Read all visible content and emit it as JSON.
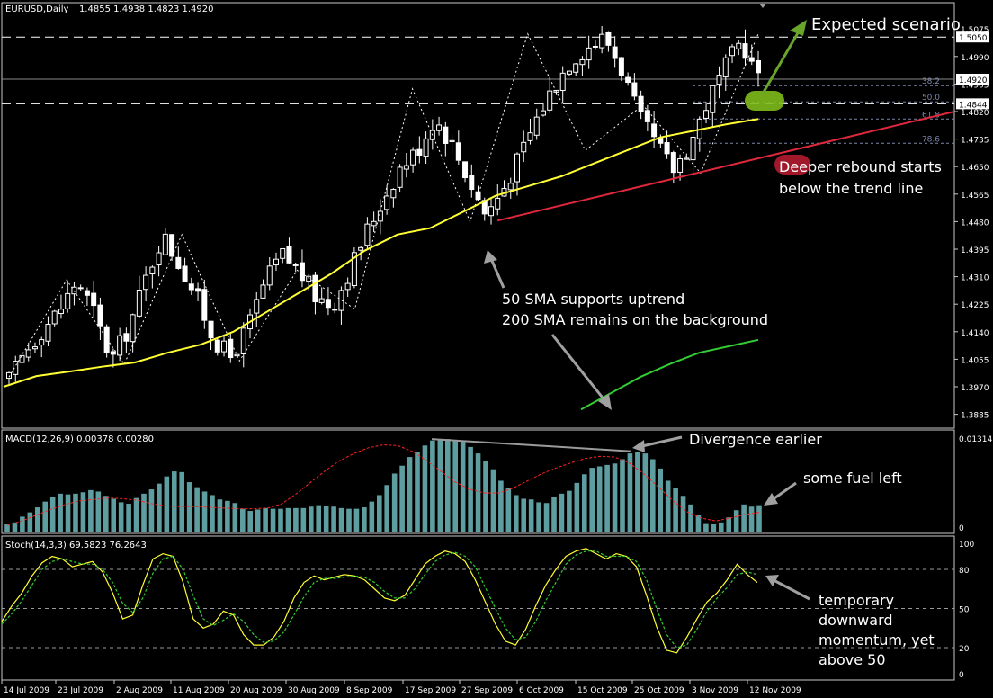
{
  "colors": {
    "background": "#000000",
    "frame": "#c8c8c8",
    "bull_candle": "#000000",
    "bear_candle": "#ffffff",
    "candle_outline": "#ffffff",
    "sma50": "#ffff33",
    "sma200": "#33cc33",
    "trend_line": "#e0283c",
    "fib_level": "#7a86a8",
    "macd_histogram": "#5f9ea0",
    "macd_signal": "#ff2222",
    "stoch_main": "#ffff33",
    "stoch_signal": "#33cc33",
    "annotation_text": "#ffffff",
    "arrow_gray": "#a0a0a0",
    "arrow_green": "#6aa52b",
    "highlight_green": "#7dbb1c",
    "highlight_red": "#a1182a"
  },
  "chart_data": [
    {
      "type": "candlestick",
      "title": "EURUSD,Daily",
      "ohlc_header": "1.4855 1.4938 1.4823 1.4920",
      "y_ticks": [
        "1.5075",
        "1.4990",
        "1.4905",
        "1.4820",
        "1.4735",
        "1.4650",
        "1.4565",
        "1.4480",
        "1.4395",
        "1.4310",
        "1.4225",
        "1.4140",
        "1.4055",
        "1.3970",
        "1.3885"
      ],
      "ylim": [
        1.387,
        1.5095
      ],
      "price_labels": [
        "1.5050",
        "1.4920",
        "1.4844"
      ],
      "x_ticks": [
        "14 Jul 2009",
        "23 Jul 2009",
        "2 Aug 2009",
        "11 Aug 2009",
        "20 Aug 2009",
        "30 Aug 2009",
        "8 Sep 2009",
        "17 Sep 2009",
        "27 Sep 2009",
        "6 Oct 2009",
        "15 Oct 2009",
        "25 Oct 2009",
        "3 Nov 2009",
        "12 Nov 2009"
      ],
      "fib_levels": [
        {
          "label": "38.2",
          "value": 1.49
        },
        {
          "label": "50.0",
          "value": 1.485
        },
        {
          "label": "61.8",
          "value": 1.4797
        },
        {
          "label": "78.6",
          "value": 1.4722
        }
      ],
      "close_path": [
        1.399,
        1.408,
        1.415,
        1.421,
        1.43,
        1.42,
        1.405,
        1.415,
        1.43,
        1.444,
        1.435,
        1.425,
        1.412,
        1.406,
        1.415,
        1.429,
        1.438,
        1.433,
        1.425,
        1.422,
        1.433,
        1.445,
        1.455,
        1.465,
        1.47,
        1.48,
        1.472,
        1.461,
        1.45,
        1.458,
        1.468,
        1.48,
        1.49,
        1.498,
        1.502,
        1.505,
        1.495,
        1.48,
        1.472,
        1.464,
        1.472,
        1.485,
        1.495,
        1.504,
        1.492
      ],
      "sma50": [
        1.397,
        1.4003,
        1.4017,
        1.4032,
        1.4045,
        1.4075,
        1.41,
        1.414,
        1.42,
        1.426,
        1.432,
        1.439,
        1.444,
        1.446,
        1.451,
        1.456,
        1.459,
        1.462,
        1.466,
        1.47,
        1.474,
        1.476,
        1.478,
        1.4797
      ],
      "sma200": [
        1.39,
        1.395,
        1.4,
        1.404,
        1.4075,
        1.4095,
        1.4115
      ],
      "trend_line": [
        [
          1.4483,
          1.482
        ]
      ],
      "zigzag": [
        1.4,
        1.43,
        1.404,
        1.444,
        1.405,
        1.433,
        1.421,
        1.489,
        1.448,
        1.506,
        1.47,
        1.484,
        1.463,
        1.506
      ],
      "annotations": [
        "Expected scenario",
        "Deeper rebound starts",
        "below the trend line",
        "50 SMA supports uptrend",
        "200 SMA remains on the background"
      ]
    },
    {
      "type": "bar",
      "title": "MACD(12,26,9) 0.00378 0.00280",
      "y_ticks": [
        "0.01314",
        "0"
      ],
      "ylim": [
        0,
        0.01314
      ],
      "values": [
        0.0012,
        0.0014,
        0.0022,
        0.0028,
        0.0035,
        0.0043,
        0.005,
        0.0054,
        0.0053,
        0.0054,
        0.0056,
        0.0059,
        0.0057,
        0.0051,
        0.0047,
        0.0042,
        0.004,
        0.0048,
        0.0054,
        0.006,
        0.0068,
        0.0078,
        0.0085,
        0.0084,
        0.007,
        0.0063,
        0.0057,
        0.0052,
        0.0046,
        0.0044,
        0.0041,
        0.0033,
        0.003,
        0.0032,
        0.0034,
        0.0033,
        0.0033,
        0.0034,
        0.0034,
        0.0034,
        0.0036,
        0.0038,
        0.0037,
        0.0036,
        0.0034,
        0.0033,
        0.0033,
        0.0035,
        0.0043,
        0.0052,
        0.0066,
        0.0082,
        0.0093,
        0.0105,
        0.0112,
        0.0121,
        0.0128,
        0.013,
        0.013,
        0.0128,
        0.0127,
        0.0119,
        0.011,
        0.01,
        0.0088,
        0.0072,
        0.0062,
        0.0052,
        0.0047,
        0.0046,
        0.0042,
        0.0041,
        0.0049,
        0.0054,
        0.0058,
        0.0069,
        0.0081,
        0.009,
        0.0092,
        0.0094,
        0.0096,
        0.0102,
        0.011,
        0.0112,
        0.011,
        0.0102,
        0.0089,
        0.0072,
        0.0062,
        0.0051,
        0.0039,
        0.0025,
        0.0013,
        0.0012,
        0.0014,
        0.0021,
        0.0031,
        0.0039,
        0.0036,
        0.0038
      ],
      "signal": [
        0.001,
        0.0016,
        0.0024,
        0.0032,
        0.0039,
        0.0044,
        0.0046,
        0.0048,
        0.0047,
        0.0045,
        0.004,
        0.0037,
        0.0036,
        0.0036,
        0.0035,
        0.0034,
        0.0033,
        0.0033,
        0.0034,
        0.004,
        0.0054,
        0.007,
        0.0086,
        0.01,
        0.011,
        0.0118,
        0.0122,
        0.0121,
        0.0113,
        0.01,
        0.0085,
        0.007,
        0.006,
        0.0055,
        0.0055,
        0.0062,
        0.0072,
        0.0082,
        0.009,
        0.0097,
        0.0103,
        0.0106,
        0.0105,
        0.0097,
        0.0082,
        0.0064,
        0.0045,
        0.0029,
        0.002,
        0.0016,
        0.002,
        0.0025,
        0.0028
      ],
      "annotations": [
        "Divergence earlier",
        "some fuel left"
      ]
    },
    {
      "type": "line",
      "title": "Stoch(14,3,3) 69.5823 76.2643",
      "y_ticks": [
        "100",
        "80",
        "50",
        "20",
        "0"
      ],
      "ylim": [
        0,
        100
      ],
      "levels": [
        80,
        50,
        20
      ],
      "series": [
        {
          "values": [
            40,
            52,
            62,
            75,
            85,
            90,
            88,
            82,
            84,
            86,
            78,
            62,
            42,
            45,
            68,
            88,
            92,
            90,
            70,
            42,
            35,
            38,
            48,
            45,
            30,
            22,
            22,
            28,
            40,
            58,
            70,
            75,
            72,
            74,
            76,
            75,
            72,
            65,
            58,
            56,
            60,
            72,
            84,
            90,
            94,
            92,
            86,
            72,
            55,
            38,
            25,
            22,
            34,
            52,
            68,
            80,
            90,
            94,
            96,
            92,
            88,
            92,
            90,
            82,
            60,
            36,
            18,
            16,
            28,
            42,
            55,
            62,
            72,
            84,
            76,
            70
          ]
        },
        {
          "values": [
            38,
            46,
            56,
            68,
            80,
            86,
            88,
            86,
            84,
            84,
            80,
            70,
            54,
            47,
            58,
            77,
            88,
            90,
            80,
            60,
            42,
            37,
            41,
            46,
            40,
            30,
            24,
            25,
            32,
            45,
            59,
            70,
            73,
            73,
            74,
            75,
            74,
            70,
            63,
            58,
            58,
            65,
            76,
            86,
            91,
            93,
            90,
            82,
            66,
            50,
            35,
            26,
            28,
            40,
            56,
            70,
            84,
            91,
            94,
            94,
            90,
            90,
            90,
            86,
            72,
            50,
            30,
            20,
            22,
            34,
            48,
            58,
            66,
            76,
            78,
            76
          ]
        }
      ],
      "annotations": [
        "temporary",
        "downward",
        "momentum, yet",
        "above 50"
      ]
    }
  ]
}
